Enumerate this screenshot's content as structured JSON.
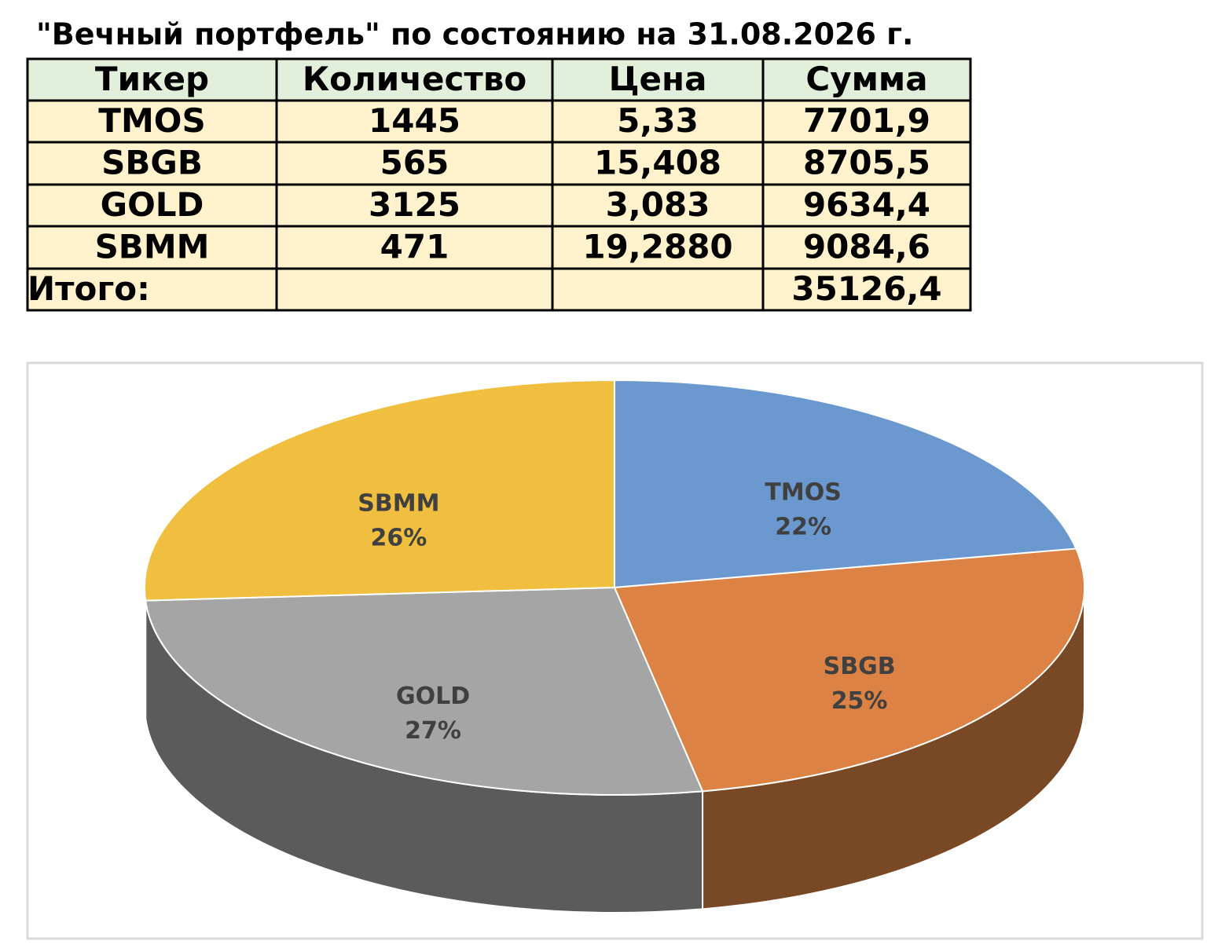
{
  "title": "\"Вечный портфель\" по состоянию на 31.08.2026 г.",
  "table": {
    "header": [
      "Тикер",
      "Количество",
      "Цена",
      "Сумма"
    ],
    "rows": [
      [
        "TMOS",
        "1445",
        "5,33",
        "7701,9"
      ],
      [
        "SBGB",
        "565",
        "15,408",
        "8705,5"
      ],
      [
        "GOLD",
        "3125",
        "3,083",
        "9634,4"
      ],
      [
        "SBMM",
        "471",
        "19,2880",
        "9084,6"
      ],
      [
        "Итого:",
        null,
        null,
        "35126,4"
      ]
    ]
  },
  "chart_data": {
    "type": "pie",
    "categories": [
      "TMOS",
      "SBGB",
      "GOLD",
      "SBMM"
    ],
    "values": [
      22,
      25,
      27,
      26
    ],
    "value_labels": [
      "22%",
      "25%",
      "27%",
      "26%"
    ],
    "colors": [
      "#6a98cf",
      "#dc8244",
      "#a5a5a5",
      "#f0bf40"
    ]
  }
}
